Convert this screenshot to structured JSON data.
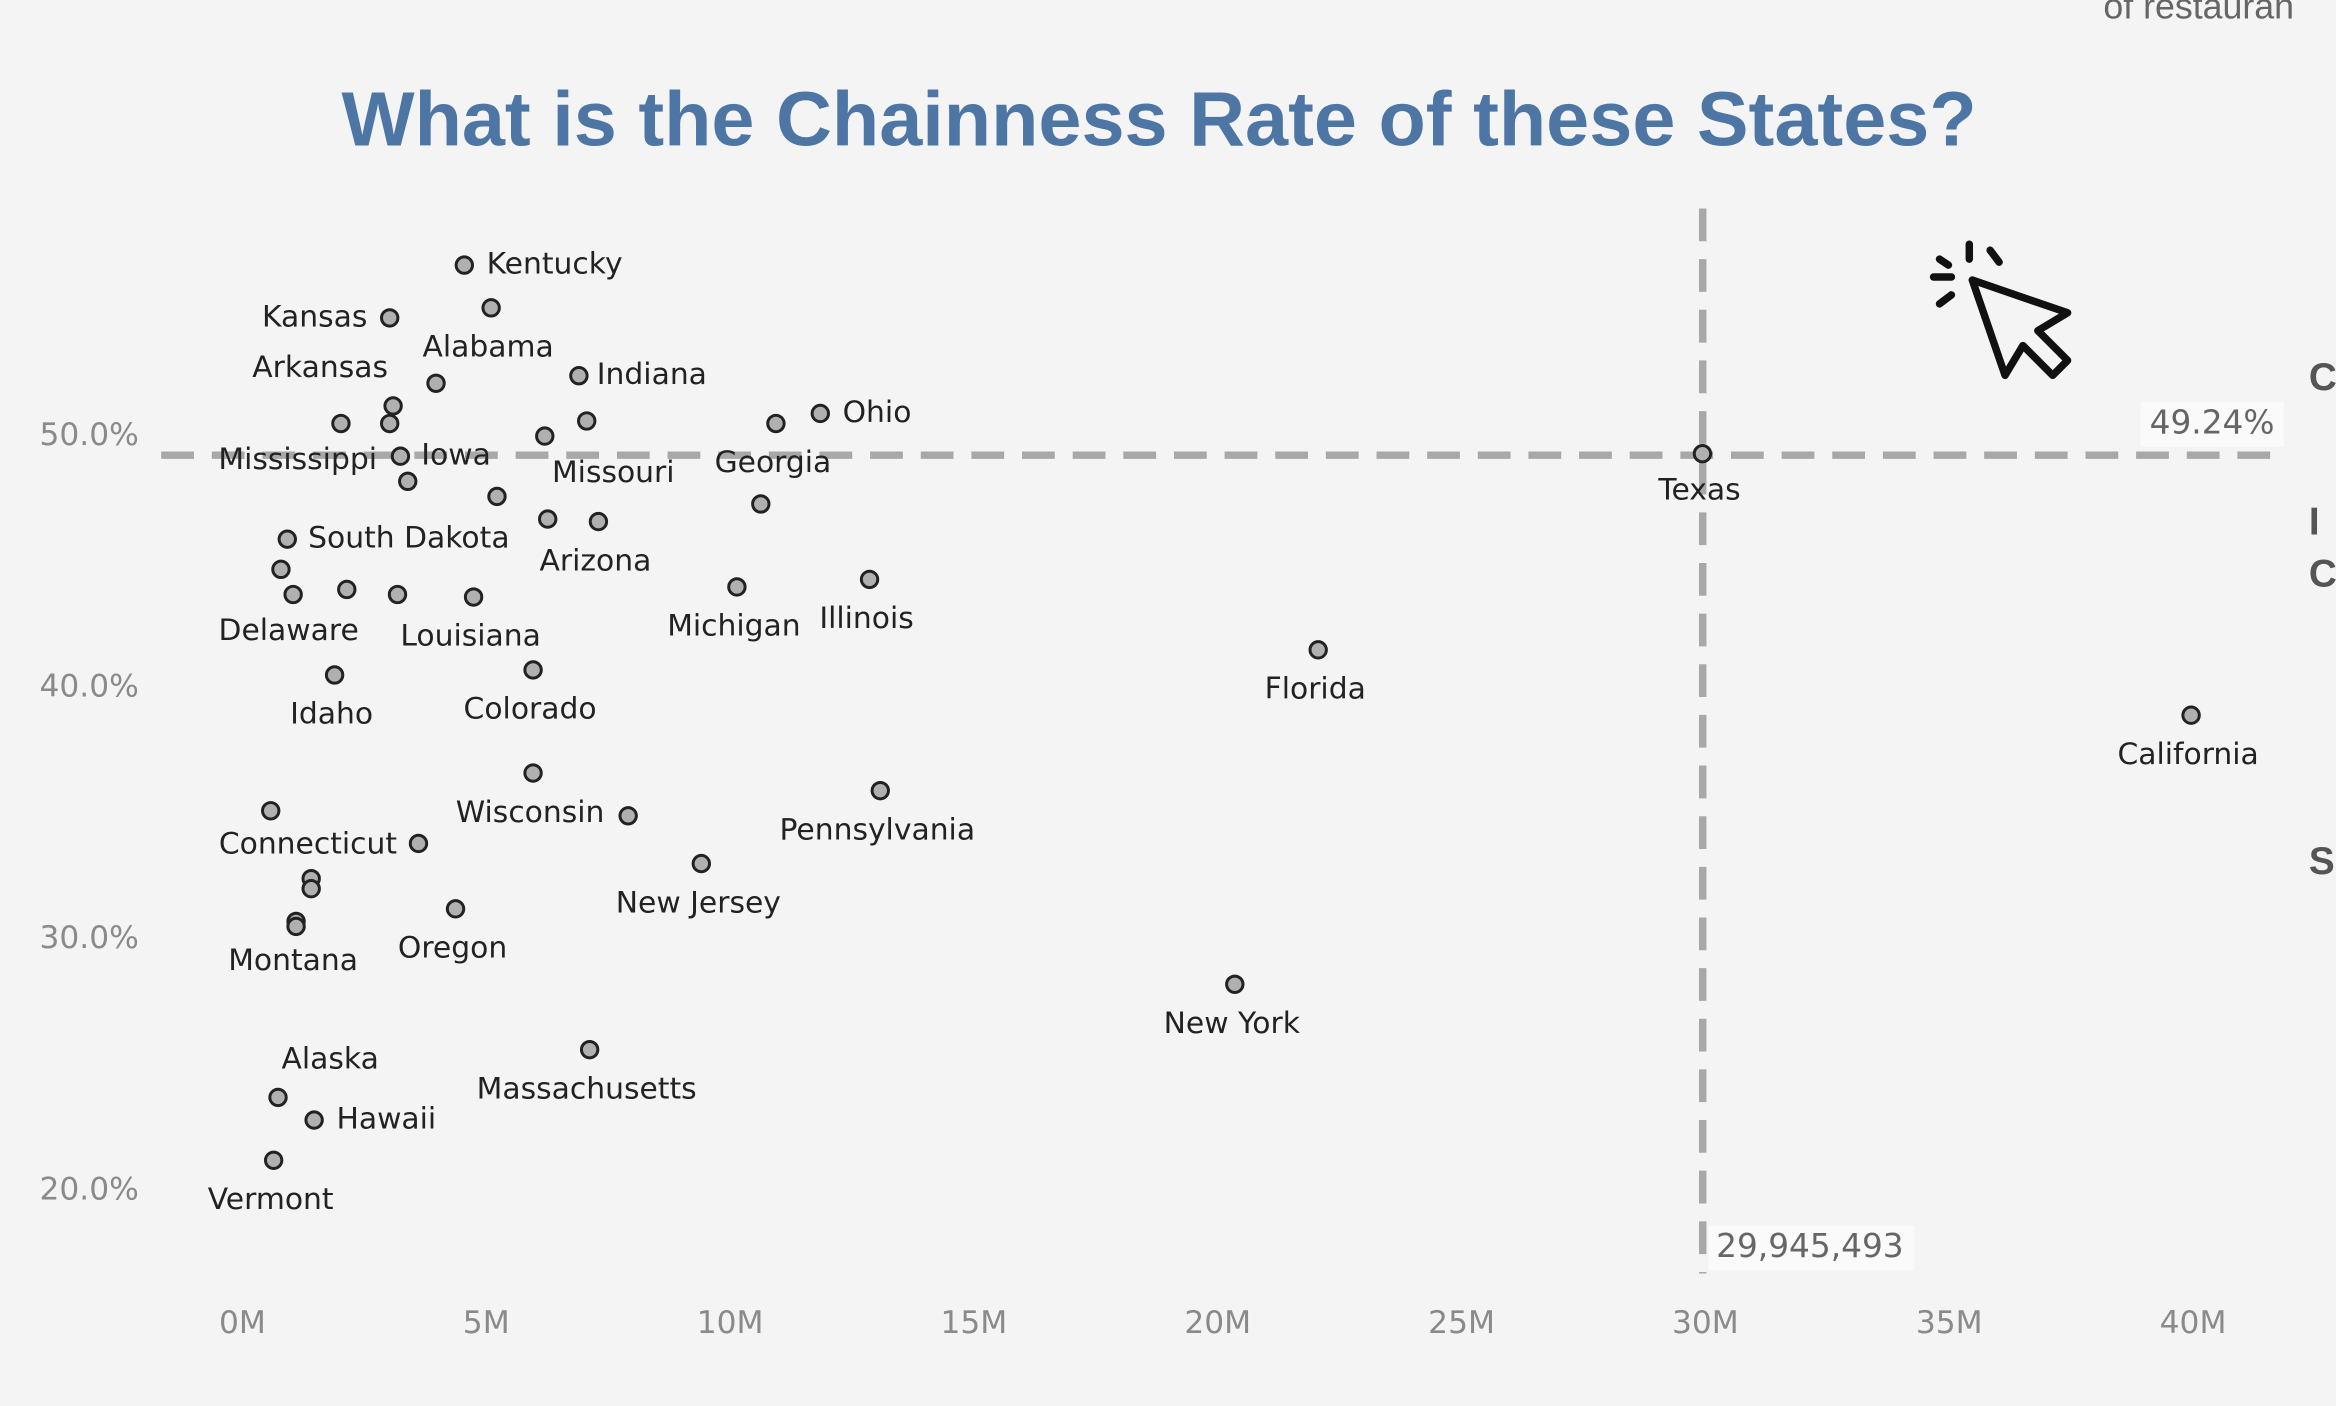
{
  "chart_data": {
    "type": "scatter",
    "title": "What is the Chainness Rate of these States?",
    "categories": [
      "Kentucky",
      "Kansas",
      "Alabama",
      "Indiana",
      null,
      "Arkansas",
      "Mississippi",
      null,
      null,
      "Missouri",
      "Georgia",
      "Ohio",
      "Iowa",
      null,
      null,
      null,
      "Arizona",
      null,
      "South Dakota",
      null,
      "Delaware",
      null,
      null,
      "Louisiana",
      "Michigan",
      "Illinois",
      "Florida",
      "Idaho",
      "Colorado",
      "California",
      "Wisconsin",
      null,
      "Pennsylvania",
      "Connecticut",
      null,
      null,
      null,
      "New Jersey",
      "Montana",
      null,
      "Oregon",
      "New York",
      "Massachusetts",
      "Alaska",
      "Hawaii",
      "Vermont",
      "Texas"
    ],
    "x": [
      4.55,
      3.02,
      5.1,
      6.9,
      3.97,
      3.09,
      2.02,
      3.02,
      7.06,
      6.2,
      10.94,
      11.85,
      3.24,
      3.39,
      5.22,
      6.26,
      7.3,
      10.63,
      0.92,
      0.79,
      1.04,
      2.14,
      3.18,
      4.74,
      10.14,
      12.86,
      22.06,
      1.89,
      5.96,
      39.96,
      5.96,
      7.91,
      13.08,
      0.58,
      3.61,
      1.41,
      1.41,
      9.41,
      1.1,
      1.1,
      4.37,
      20.35,
      7.12,
      0.73,
      1.47,
      0.64,
      29.94
    ],
    "values": [
      56.8,
      54.7,
      55.1,
      52.4,
      52.1,
      51.2,
      50.5,
      50.5,
      50.6,
      50.0,
      50.5,
      50.9,
      49.2,
      48.2,
      47.6,
      46.7,
      46.6,
      47.3,
      45.9,
      44.7,
      43.7,
      43.9,
      43.7,
      43.6,
      44.0,
      44.3,
      41.5,
      40.5,
      40.7,
      38.9,
      36.6,
      34.9,
      35.9,
      35.1,
      33.8,
      32.4,
      32.0,
      33.0,
      30.7,
      30.5,
      31.2,
      28.2,
      25.6,
      23.7,
      22.8,
      21.2,
      49.3
    ],
    "color": "#b0b0b0",
    "xlim": [
      -1.3,
      42.07
    ],
    "ylim": [
      16.7,
      59.05
    ],
    "xticks": [
      {
        "value": 0,
        "label": "0M"
      },
      {
        "value": 5,
        "label": "5M"
      },
      {
        "value": 10,
        "label": "10M"
      },
      {
        "value": 15,
        "label": "15M"
      },
      {
        "value": 20,
        "label": "20M"
      },
      {
        "value": 25,
        "label": "25M"
      },
      {
        "value": 30,
        "label": "30M"
      },
      {
        "value": 35,
        "label": "35M"
      },
      {
        "value": 40,
        "label": "40M"
      }
    ],
    "yticks": [
      {
        "value": 20,
        "label": "20.0%"
      },
      {
        "value": 30,
        "label": "30.0%"
      },
      {
        "value": 40,
        "label": "40.0%"
      },
      {
        "value": 50,
        "label": "50.0%"
      }
    ],
    "reference_lines": {
      "x": {
        "value": 29.945493,
        "label": "29,945,493"
      },
      "y": {
        "value": 49.24,
        "label": "49.24%"
      }
    },
    "side_text": {
      "top": "of restauran",
      "letters": [
        "C",
        "I",
        "C",
        "S"
      ]
    }
  }
}
